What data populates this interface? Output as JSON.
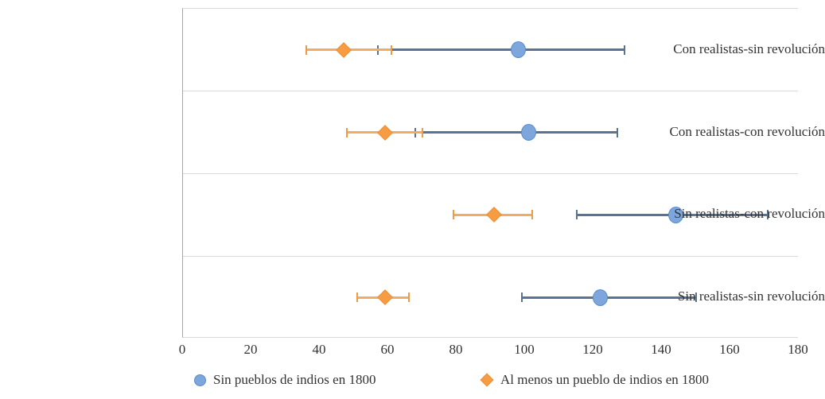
{
  "chart_data": {
    "type": "scatter",
    "subtype": "horizontal-dot-plot-with-error-bars",
    "title": "",
    "xlabel": "",
    "ylabel": "",
    "xlim": [
      0,
      180
    ],
    "x_ticks": [
      0,
      20,
      40,
      60,
      80,
      100,
      120,
      140,
      160,
      180
    ],
    "grid": "horizontal row separators",
    "legend_position": "bottom",
    "categories": [
      "Con realistas-sin revolución",
      "Con realistas-con revolución",
      "Sin realistas-con revolución",
      "Sin realistas-sin revolución"
    ],
    "series": [
      {
        "name": "Sin pueblos de indios en 1800",
        "marker": "circle",
        "marker_color": "#7DA7DC",
        "marker_border_color": "#5B8BC9",
        "line_color": "#5A7392",
        "values": [
          98,
          101,
          144,
          122
        ],
        "ci_low": [
          57,
          68,
          115,
          99
        ],
        "ci_high": [
          129,
          127,
          171,
          150
        ]
      },
      {
        "name": "Al menos un pueblo de indios en 1800",
        "marker": "diamond",
        "marker_color": "#F79C42",
        "marker_border_color": "#EF8F35",
        "line_color": "#F2AB61",
        "cap_color": "#EF9A45",
        "values": [
          47,
          59,
          91,
          59
        ],
        "ci_low": [
          36,
          48,
          79,
          51
        ],
        "ci_high": [
          61,
          70,
          102,
          66
        ]
      }
    ],
    "axis_colors": {
      "gridline": "#D9D9D9",
      "y_axis_line": "#A6A6A6",
      "text": "#333333"
    }
  }
}
